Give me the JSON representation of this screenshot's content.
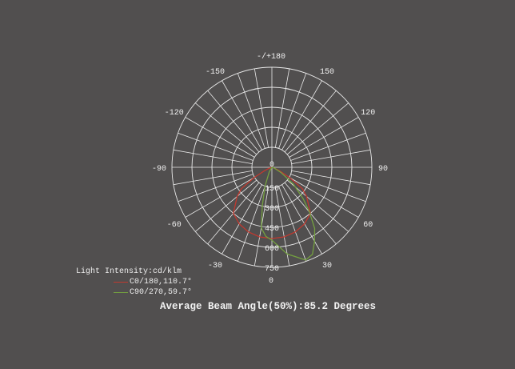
{
  "chart_data": {
    "type": "polar",
    "angle_labels": [
      {
        "angle": 0,
        "label": "0"
      },
      {
        "angle": 30,
        "label": "30"
      },
      {
        "angle": 60,
        "label": "60"
      },
      {
        "angle": 90,
        "label": "90"
      },
      {
        "angle": 120,
        "label": "120"
      },
      {
        "angle": 150,
        "label": "150"
      },
      {
        "angle": 180,
        "label": "-/+180"
      },
      {
        "angle": -150,
        "label": "-150"
      },
      {
        "angle": -120,
        "label": "-120"
      },
      {
        "angle": -90,
        "label": "-90"
      },
      {
        "angle": -60,
        "label": "-60"
      },
      {
        "angle": -30,
        "label": "-30"
      }
    ],
    "radial_ticks": [
      0,
      150,
      300,
      450,
      600,
      750
    ],
    "rlim": [
      0,
      750
    ],
    "grid": true,
    "series": [
      {
        "name": "C0/180,110.7°",
        "color": "#c0392f",
        "points": [
          [
            -80,
            0
          ],
          [
            -70,
            20
          ],
          [
            -65,
            60
          ],
          [
            -60,
            150
          ],
          [
            -55,
            280
          ],
          [
            -50,
            340
          ],
          [
            -40,
            450
          ],
          [
            -30,
            490
          ],
          [
            -20,
            515
          ],
          [
            -10,
            530
          ],
          [
            0,
            534
          ],
          [
            10,
            530
          ],
          [
            20,
            515
          ],
          [
            30,
            490
          ],
          [
            40,
            450
          ],
          [
            50,
            340
          ],
          [
            55,
            280
          ],
          [
            60,
            150
          ],
          [
            65,
            60
          ],
          [
            70,
            20
          ],
          [
            80,
            0
          ]
        ]
      },
      {
        "name": "C90/270,59.7°",
        "color": "#74a040",
        "points": [
          [
            -40,
            0
          ],
          [
            -30,
            40
          ],
          [
            -20,
            150
          ],
          [
            -14,
            297
          ],
          [
            -10,
            460
          ],
          [
            -5,
            520
          ],
          [
            0,
            546
          ],
          [
            10,
            660
          ],
          [
            20,
            740
          ],
          [
            25,
            720
          ],
          [
            30,
            640
          ],
          [
            35,
            560
          ],
          [
            40,
            440
          ],
          [
            45,
            330
          ],
          [
            52,
            205
          ],
          [
            60,
            80
          ],
          [
            70,
            20
          ],
          [
            80,
            0
          ]
        ]
      }
    ]
  },
  "legend": {
    "title": "Light Intensity:cd/klm",
    "items": [
      "C0/180,110.7°",
      "C90/270,59.7°"
    ]
  },
  "beam_angle": "Average Beam Angle(50%):85.2 Degrees"
}
